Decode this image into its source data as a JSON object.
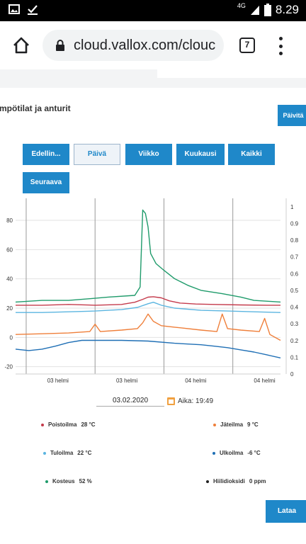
{
  "status": {
    "time": "8.29",
    "network": "4G"
  },
  "browser": {
    "url": "cloud.vallox.com/clouc",
    "tab_count": "7"
  },
  "section": {
    "title": "mpötilat ja anturit",
    "update_button": "Päivitä"
  },
  "range_buttons": {
    "prev": "Edellin...",
    "day": "Päivä",
    "week": "Viikko",
    "month": "Kuukausi",
    "all": "Kaikki",
    "next": "Seuraava"
  },
  "date_picker": {
    "date": "03.02.2020",
    "time_label": "Aika: 19:49"
  },
  "legend": [
    {
      "name": "Poistoilma",
      "value": "28 °C",
      "color": "#c43a4b"
    },
    {
      "name": "Jäteilma",
      "value": "9 °C",
      "color": "#ef7f3a"
    },
    {
      "name": "Tuloilma",
      "value": "22 °C",
      "color": "#5bb5e0"
    },
    {
      "name": "Ulkoilma",
      "value": "-6 °C",
      "color": "#1f6fb5"
    },
    {
      "name": "Kosteus",
      "value": "52 %",
      "color": "#1f9b6b"
    },
    {
      "name": "Hiilidioksidi",
      "value": "0 ppm",
      "color": "#222222"
    }
  ],
  "load_button": "Lataa",
  "chart_data": {
    "type": "line",
    "x_ticks": [
      "03 helmi",
      "03 helmi",
      "04 helmi",
      "04 helmi"
    ],
    "y_left_ticks": [
      "80",
      "60",
      "40",
      "20",
      "0",
      "-20"
    ],
    "y_right_ticks": [
      "1",
      "0.9",
      "0.8",
      "0.7",
      "0.6",
      "0.5",
      "0.4",
      "0.3",
      "0.2",
      "0.1",
      "0"
    ],
    "ylim_left": [
      -25,
      95
    ],
    "ylim_right": [
      0,
      1.05
    ],
    "grid": true,
    "x_range": [
      0,
      100
    ],
    "series": [
      {
        "name": "Poistoilma",
        "color": "#c43a4b",
        "axis": "left",
        "points": [
          [
            0,
            22
          ],
          [
            10,
            22
          ],
          [
            20,
            22.5
          ],
          [
            30,
            22
          ],
          [
            40,
            22.5
          ],
          [
            45,
            24
          ],
          [
            48,
            26
          ],
          [
            50,
            27.5
          ],
          [
            52,
            27.8
          ],
          [
            55,
            27
          ],
          [
            58,
            25
          ],
          [
            62,
            23.5
          ],
          [
            68,
            22.8
          ],
          [
            75,
            22.5
          ],
          [
            85,
            22.2
          ],
          [
            95,
            22
          ],
          [
            100,
            22
          ]
        ]
      },
      {
        "name": "Jäteilma",
        "color": "#ef7f3a",
        "axis": "left",
        "points": [
          [
            0,
            2
          ],
          [
            10,
            2.5
          ],
          [
            20,
            3
          ],
          [
            28,
            4
          ],
          [
            30,
            9
          ],
          [
            32,
            4
          ],
          [
            40,
            5
          ],
          [
            46,
            6
          ],
          [
            48,
            10
          ],
          [
            50,
            16
          ],
          [
            52,
            11
          ],
          [
            55,
            8
          ],
          [
            60,
            7
          ],
          [
            70,
            5
          ],
          [
            76,
            4
          ],
          [
            78,
            16
          ],
          [
            80,
            6
          ],
          [
            85,
            5
          ],
          [
            92,
            4
          ],
          [
            94,
            13
          ],
          [
            96,
            2
          ],
          [
            100,
            -2
          ]
        ]
      },
      {
        "name": "Tuloilma",
        "color": "#5bb5e0",
        "axis": "left",
        "points": [
          [
            0,
            17
          ],
          [
            10,
            17
          ],
          [
            20,
            17.5
          ],
          [
            30,
            18
          ],
          [
            40,
            19
          ],
          [
            46,
            20.5
          ],
          [
            50,
            23
          ],
          [
            52,
            24
          ],
          [
            55,
            22
          ],
          [
            60,
            20
          ],
          [
            70,
            18.5
          ],
          [
            80,
            18
          ],
          [
            90,
            17.5
          ],
          [
            100,
            17
          ]
        ]
      },
      {
        "name": "Ulkoilma",
        "color": "#1f6fb5",
        "axis": "left",
        "points": [
          [
            0,
            -8
          ],
          [
            5,
            -9
          ],
          [
            10,
            -8
          ],
          [
            15,
            -6
          ],
          [
            20,
            -3.5
          ],
          [
            25,
            -2
          ],
          [
            30,
            -2
          ],
          [
            40,
            -2
          ],
          [
            50,
            -2.5
          ],
          [
            60,
            -4
          ],
          [
            70,
            -5
          ],
          [
            75,
            -6
          ],
          [
            80,
            -7
          ],
          [
            85,
            -8.5
          ],
          [
            90,
            -10
          ],
          [
            95,
            -12
          ],
          [
            100,
            -14
          ]
        ]
      },
      {
        "name": "Kosteus",
        "color": "#1f9b6b",
        "axis": "right",
        "points": [
          [
            0,
            0.43
          ],
          [
            10,
            0.44
          ],
          [
            20,
            0.44
          ],
          [
            28,
            0.45
          ],
          [
            35,
            0.46
          ],
          [
            45,
            0.47
          ],
          [
            47,
            0.52
          ],
          [
            48,
            0.98
          ],
          [
            49,
            0.96
          ],
          [
            50,
            0.88
          ],
          [
            51,
            0.72
          ],
          [
            53,
            0.66
          ],
          [
            56,
            0.62
          ],
          [
            60,
            0.57
          ],
          [
            65,
            0.53
          ],
          [
            70,
            0.5
          ],
          [
            78,
            0.48
          ],
          [
            85,
            0.46
          ],
          [
            90,
            0.44
          ],
          [
            100,
            0.43
          ]
        ]
      }
    ]
  }
}
